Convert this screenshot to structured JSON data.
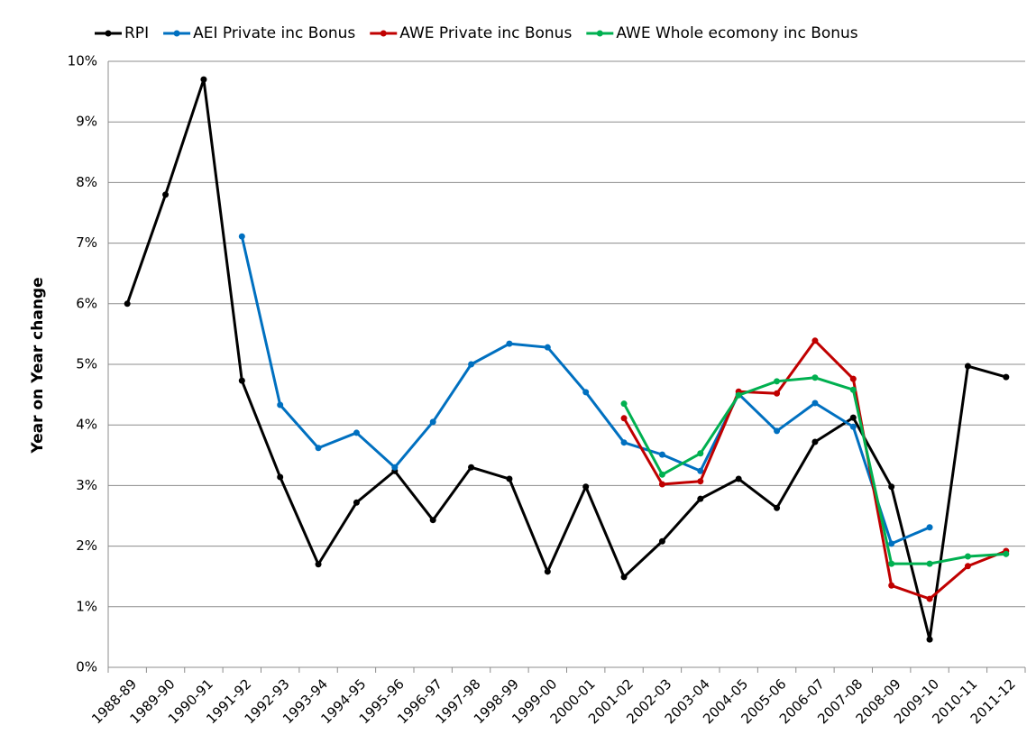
{
  "chart_data": {
    "type": "line",
    "y_label": "Year on Year change",
    "categories": [
      "1988-89",
      "1989-90",
      "1990-91",
      "1991-92",
      "1992-93",
      "1993-94",
      "1994-95",
      "1995-96",
      "1996-97",
      "1997-98",
      "1998-99",
      "1999-00",
      "2000-01",
      "2001-02",
      "2002-03",
      "2003-04",
      "2004-05",
      "2005-06",
      "2006-07",
      "2007-08",
      "2008-09",
      "2009-10",
      "2010-11",
      "2011-12"
    ],
    "series": [
      {
        "name": "RPI",
        "color": "#000000",
        "values": [
          6.0,
          7.8,
          9.7,
          4.73,
          3.14,
          1.7,
          2.72,
          3.24,
          2.43,
          3.3,
          3.11,
          1.58,
          2.98,
          1.49,
          2.08,
          2.78,
          3.11,
          2.63,
          3.72,
          4.12,
          2.98,
          0.46,
          4.97,
          4.79
        ]
      },
      {
        "name": "AEI Private inc Bonus",
        "color": "#0070c0",
        "values": [
          null,
          null,
          null,
          7.11,
          4.33,
          3.62,
          3.87,
          3.3,
          4.05,
          5.0,
          5.34,
          5.28,
          4.54,
          3.71,
          3.51,
          3.24,
          4.51,
          3.9,
          4.36,
          3.97,
          2.04,
          2.31,
          null,
          null
        ]
      },
      {
        "name": "AWE Private inc Bonus",
        "color": "#c00000",
        "values": [
          null,
          null,
          null,
          null,
          null,
          null,
          null,
          null,
          null,
          null,
          null,
          null,
          null,
          4.11,
          3.02,
          3.07,
          4.55,
          4.52,
          5.39,
          4.76,
          1.35,
          1.13,
          1.67,
          1.92
        ]
      },
      {
        "name": "AWE Whole ecomony inc Bonus",
        "color": "#00b050",
        "values": [
          null,
          null,
          null,
          null,
          null,
          null,
          null,
          null,
          null,
          null,
          null,
          null,
          null,
          4.35,
          3.18,
          3.53,
          4.49,
          4.72,
          4.78,
          4.58,
          1.71,
          1.71,
          1.83,
          1.87
        ]
      }
    ],
    "ylim": [
      0,
      10
    ],
    "yticks": [
      {
        "value": 0,
        "label": "0%"
      },
      {
        "value": 1,
        "label": "1%"
      },
      {
        "value": 2,
        "label": "2%"
      },
      {
        "value": 3,
        "label": "3%"
      },
      {
        "value": 4,
        "label": "4%"
      },
      {
        "value": 5,
        "label": "5%"
      },
      {
        "value": 6,
        "label": "6%"
      },
      {
        "value": 7,
        "label": "7%"
      },
      {
        "value": 8,
        "label": "8%"
      },
      {
        "value": 9,
        "label": "9%"
      },
      {
        "value": 10,
        "label": "10%"
      }
    ],
    "grid": true,
    "legend": "top"
  }
}
